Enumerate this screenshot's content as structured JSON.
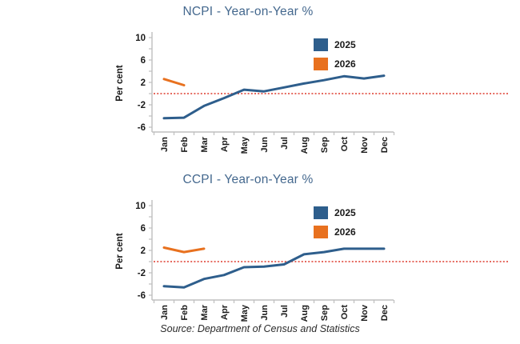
{
  "page": {
    "source_note": "Source: Department of Census and Statistics",
    "background": "#ffffff"
  },
  "colors": {
    "title_text": "#44688E",
    "series_2025": "#2E5E8C",
    "series_2026": "#E8711F",
    "zero_line": "#E2564A",
    "axis_line": "#BFBFBF",
    "tick_text": "#1A1A1A",
    "source_text": "#2B2B2B"
  },
  "chart_data": [
    {
      "type": "line",
      "title": "NCPI - Year-on-Year %",
      "ylabel": "Per cent",
      "yticks": [
        10,
        6,
        2,
        -2,
        -6
      ],
      "ylim": [
        -7,
        11
      ],
      "zero_reference_line": 0,
      "grid": false,
      "legend_position": "upper-right-inside",
      "categories": [
        "Jan",
        "Feb",
        "Mar",
        "Apr",
        "May",
        "Jun",
        "Jul",
        "Aug",
        "Sep",
        "Oct",
        "Nov",
        "Dec"
      ],
      "series": [
        {
          "name": "2025",
          "color": "#2E5E8C",
          "values": [
            -4.4,
            -4.3,
            -2.2,
            -0.8,
            0.7,
            0.4,
            1.1,
            1.8,
            2.4,
            3.1,
            2.7,
            3.2
          ]
        },
        {
          "name": "2026",
          "color": "#E8711F",
          "values": [
            2.6,
            1.5,
            null,
            null,
            null,
            null,
            null,
            null,
            null,
            null,
            null,
            null
          ]
        }
      ]
    },
    {
      "type": "line",
      "title": "CCPI - Year-on-Year %",
      "ylabel": "Per cent",
      "yticks": [
        10,
        6,
        2,
        -2,
        -6
      ],
      "ylim": [
        -7,
        11
      ],
      "zero_reference_line": 0,
      "grid": false,
      "legend_position": "upper-right-inside",
      "categories": [
        "Jan",
        "Feb",
        "Mar",
        "Apr",
        "May",
        "Jun",
        "Jul",
        "Aug",
        "Sep",
        "Oct",
        "Nov",
        "Dec"
      ],
      "series": [
        {
          "name": "2025",
          "color": "#2E5E8C",
          "values": [
            -4.4,
            -4.6,
            -3.1,
            -2.4,
            -1.0,
            -0.9,
            -0.5,
            1.3,
            1.7,
            2.3,
            2.3,
            2.3
          ]
        },
        {
          "name": "2026",
          "color": "#E8711F",
          "values": [
            2.5,
            1.7,
            2.3,
            null,
            null,
            null,
            null,
            null,
            null,
            null,
            null,
            null
          ]
        }
      ]
    }
  ]
}
